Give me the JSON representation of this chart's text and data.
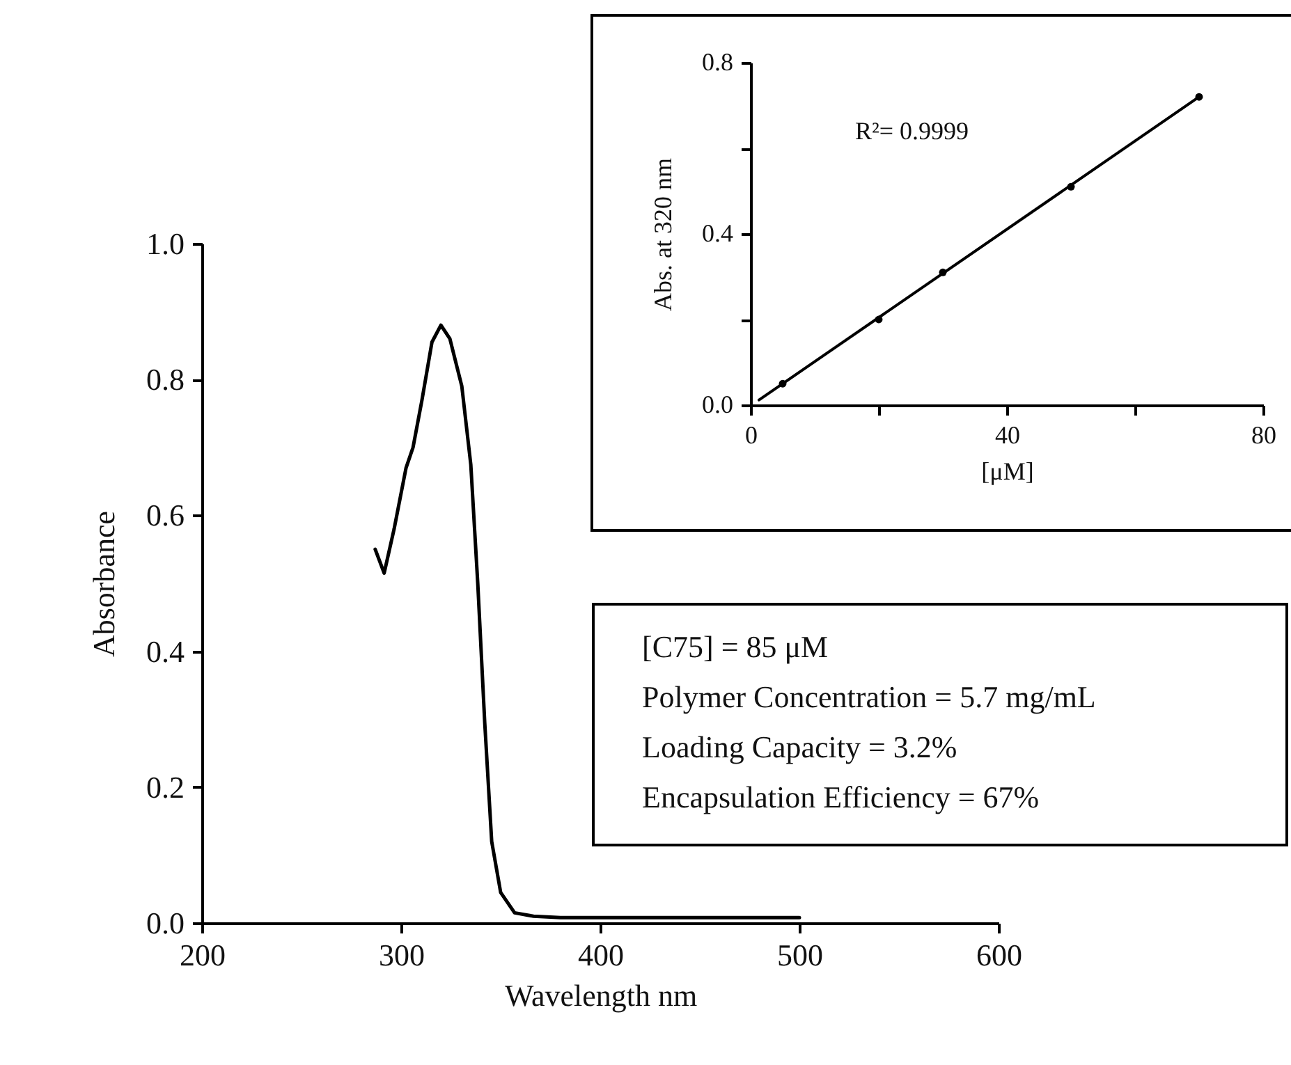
{
  "chart_data": [
    {
      "type": "line",
      "xlabel": "Wavelength nm",
      "ylabel": "Absorbance",
      "xlim": [
        200,
        600
      ],
      "xticks": [
        200,
        300,
        400,
        500,
        600
      ],
      "ylim": [
        0,
        1.0
      ],
      "yticks": [
        {
          "value": 0,
          "label": "0.0"
        },
        {
          "value": 0.2,
          "label": "0.2"
        },
        {
          "value": 0.4,
          "label": "0.4"
        },
        {
          "value": 0.6,
          "label": "0.6"
        },
        {
          "value": 0.8,
          "label": "0.8"
        },
        {
          "value": 1.0,
          "label": "1.0"
        }
      ],
      "line_style": "solid",
      "x": [
        287,
        291.5,
        296.5,
        302.5,
        306,
        310.5,
        315.5,
        320,
        324.5,
        330.5,
        335,
        338.5,
        342,
        345.5,
        350,
        357,
        366.5,
        380,
        420,
        500
      ],
      "series": [
        {
          "color": "#000000",
          "values": [
            0.55,
            0.515,
            0.58,
            0.67,
            0.7,
            0.77,
            0.855,
            0.88,
            0.86,
            0.79,
            0.675,
            0.5,
            0.295,
            0.12,
            0.045,
            0.015,
            0.01,
            0.008,
            0.008,
            0.008
          ]
        }
      ],
      "annotations": [
        "[C75] = 85 μM",
        "Polymer Concentration = 5.7 mg/mL",
        "Loading Capacity = 3.2%",
        "Encapsulation Efficiency = 67%"
      ]
    },
    {
      "type": "scatter",
      "xlabel": "[μM]",
      "ylabel": "Abs. at 320 nm",
      "xlim": [
        0,
        80
      ],
      "xticks": [
        0,
        {
          "value": 20,
          "label": null
        },
        40,
        {
          "value": 60,
          "label": null
        },
        80
      ],
      "ylim": [
        0,
        0.8
      ],
      "yticks": [
        {
          "value": 0,
          "label": "0.0"
        },
        {
          "value": 0.2,
          "label": null
        },
        {
          "value": 0.4,
          "label": "0.4"
        },
        {
          "value": 0.6,
          "label": null
        },
        {
          "value": 0.8,
          "label": "0.8"
        }
      ],
      "line_style": "solid",
      "series": [
        {
          "color": "#000000",
          "x": [
            5,
            20,
            30,
            50,
            70
          ],
          "values": [
            0.05,
            0.2,
            0.31,
            0.51,
            0.72
          ]
        },
        {
          "type": "line",
          "color": "#000000",
          "x": [
            1.3,
            70
          ],
          "values": [
            0.012,
            0.72
          ]
        }
      ],
      "annotations": [
        "R²= 0.9999"
      ]
    }
  ]
}
